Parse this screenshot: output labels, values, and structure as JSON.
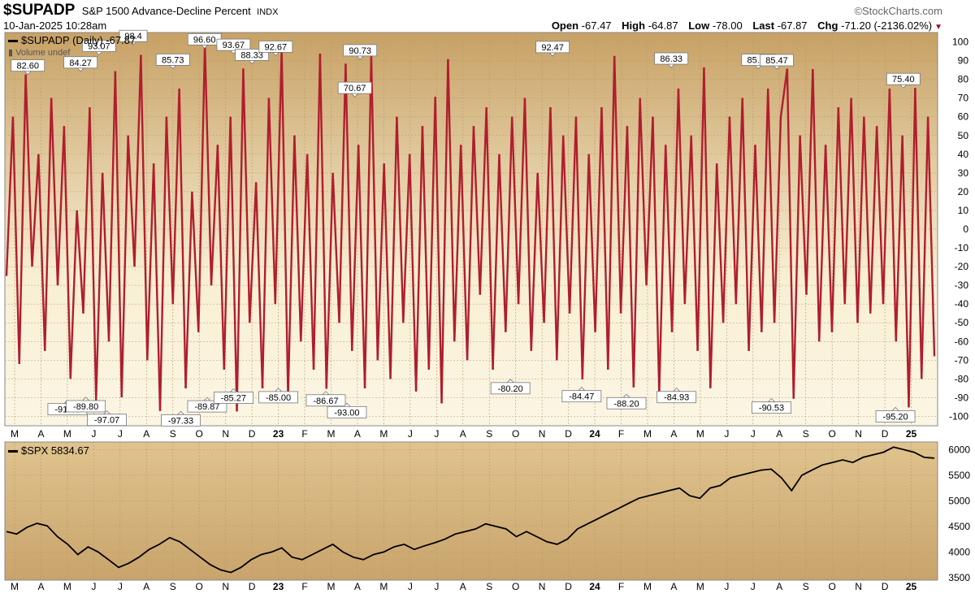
{
  "header": {
    "symbol": "$SUPADP",
    "description": "S&P 1500 Advance-Decline Percent",
    "exchange": "INDX",
    "brand": "©StockCharts.com",
    "datetime": "10-Jan-2025 10:28am",
    "open_label": "Open",
    "open": "-67.47",
    "high_label": "High",
    "high": "-64.87",
    "low_label": "Low",
    "low": "-78.00",
    "last_label": "Last",
    "last": "-67.87",
    "chg_label": "Chg",
    "chg": "-71.20 (-2136.02%)"
  },
  "colors": {
    "line": "#b01e2e",
    "bg_top": "#c8a46a",
    "bg_mid": "#f7edcf",
    "price": "#000000"
  },
  "chart_data": [
    {
      "type": "line",
      "name": "upper",
      "legend": "$SUPADP (Daily) -67.87",
      "sublegend": "Volume undef",
      "ylim": [
        -105,
        105
      ],
      "yticks": [
        100,
        90,
        80,
        70,
        60,
        50,
        40,
        30,
        20,
        10,
        0,
        -10,
        -20,
        -30,
        -40,
        -50,
        -60,
        -70,
        -80,
        -90,
        -100
      ],
      "months": [
        "M",
        "A",
        "M",
        "J",
        "J",
        "A",
        "S",
        "O",
        "N",
        "D",
        "23",
        "F",
        "M",
        "A",
        "M",
        "J",
        "J",
        "A",
        "S",
        "O",
        "N",
        "D",
        "24",
        "F",
        "M",
        "A",
        "M",
        "J",
        "J",
        "A",
        "S",
        "O",
        "N",
        "D",
        "25"
      ],
      "annotations": [
        {
          "x": 0.5,
          "y": 82.6,
          "label": "82.60"
        },
        {
          "x": 2.5,
          "y": 84.27,
          "label": "84.27"
        },
        {
          "x": 3.2,
          "y": 93.07,
          "label": "93.07"
        },
        {
          "x": 4.5,
          "y": 98.4,
          "label": "98.4"
        },
        {
          "x": 6.0,
          "y": 85.73,
          "label": "85.73"
        },
        {
          "x": 7.2,
          "y": 96.6,
          "label": "96.60"
        },
        {
          "x": 8.3,
          "y": 93.67,
          "label": "93.67"
        },
        {
          "x": 9.0,
          "y": 88.33,
          "label": "88.33"
        },
        {
          "x": 9.9,
          "y": 92.67,
          "label": "92.67"
        },
        {
          "x": 12.9,
          "y": 70.67,
          "label": "70.67"
        },
        {
          "x": 13.1,
          "y": 90.73,
          "label": "90.73"
        },
        {
          "x": 20.4,
          "y": 92.47,
          "label": "92.47"
        },
        {
          "x": 24.9,
          "y": 86.33,
          "label": "86.33"
        },
        {
          "x": 28.2,
          "y": 85.67,
          "label": "85.67"
        },
        {
          "x": 28.9,
          "y": 85.47,
          "label": "85.47"
        },
        {
          "x": 33.7,
          "y": 75.4,
          "label": "75.40"
        },
        {
          "x": 2.0,
          "y": -91.4,
          "label": "-91.40"
        },
        {
          "x": 2.7,
          "y": -89.8,
          "label": "-89.80"
        },
        {
          "x": 3.5,
          "y": -97.07,
          "label": "-97.07"
        },
        {
          "x": 6.3,
          "y": -97.33,
          "label": "-97.33"
        },
        {
          "x": 7.3,
          "y": -89.87,
          "label": "-89.87"
        },
        {
          "x": 8.3,
          "y": -85.27,
          "label": "-85.27"
        },
        {
          "x": 10.0,
          "y": -85.0,
          "label": "-85.00"
        },
        {
          "x": 11.8,
          "y": -86.67,
          "label": "-86.67"
        },
        {
          "x": 12.6,
          "y": -93.0,
          "label": "-93.00"
        },
        {
          "x": 18.8,
          "y": -80.2,
          "label": "-80.20"
        },
        {
          "x": 21.5,
          "y": -84.47,
          "label": "-84.47"
        },
        {
          "x": 23.2,
          "y": -88.2,
          "label": "-88.20"
        },
        {
          "x": 25.1,
          "y": -84.93,
          "label": "-84.93"
        },
        {
          "x": 28.7,
          "y": -90.53,
          "label": "-90.53"
        },
        {
          "x": 33.4,
          "y": -95.2,
          "label": "-95.20"
        }
      ],
      "series": [
        {
          "values": [
            -25,
            60,
            -72,
            82.6,
            -20,
            40,
            -65,
            70,
            -30,
            55,
            -80,
            10,
            -45,
            65,
            -91.4,
            30,
            -60,
            84.27,
            -89.8,
            50,
            -20,
            93.07,
            -70,
            35,
            -97.07,
            60,
            -40,
            75,
            -85,
            20,
            -55,
            98.4,
            -30,
            45,
            -75,
            60,
            -97.33,
            85.73,
            -50,
            25,
            -85,
            70,
            -40,
            96.6,
            -89.87,
            50,
            -60,
            40,
            -75,
            93.67,
            -85.27,
            30,
            -50,
            88.33,
            -65,
            45,
            -85,
            92.67,
            -70,
            35,
            -80,
            60,
            -50,
            40,
            -86.67,
            55,
            -75,
            70.67,
            -93,
            90.73,
            -60,
            45,
            -70,
            55,
            -35,
            65,
            -75,
            40,
            -55,
            60,
            -40,
            70,
            -65,
            30,
            -50,
            65,
            -70,
            50,
            -45,
            60,
            -80.2,
            40,
            -55,
            65,
            -75,
            92.47,
            -45,
            55,
            -84.47,
            70,
            -30,
            60,
            -88.2,
            45,
            -55,
            75,
            -40,
            50,
            -65,
            86.33,
            -84.93,
            35,
            -50,
            60,
            -40,
            70,
            -65,
            45,
            -55,
            75,
            -50,
            60,
            85.67,
            -90.53,
            50,
            -35,
            85.47,
            -60,
            45,
            -55,
            65,
            -40,
            70,
            -50,
            60,
            -45,
            55,
            -40,
            75,
            -60,
            50,
            -95.2,
            75.4,
            -80,
            60,
            -67.87
          ]
        }
      ]
    },
    {
      "type": "line",
      "name": "lower",
      "legend": "$SPX 5834.67",
      "ylim": [
        3450,
        6150
      ],
      "yticks": [
        6000,
        5500,
        5000,
        4500,
        4000,
        3500
      ],
      "months": [
        "M",
        "A",
        "M",
        "J",
        "J",
        "A",
        "S",
        "O",
        "N",
        "D",
        "23",
        "F",
        "M",
        "A",
        "M",
        "J",
        "J",
        "A",
        "S",
        "O",
        "N",
        "D",
        "24",
        "F",
        "M",
        "A",
        "M",
        "J",
        "J",
        "A",
        "S",
        "O",
        "N",
        "D",
        "25"
      ],
      "series": [
        {
          "values": [
            4400,
            4350,
            4480,
            4560,
            4510,
            4300,
            4150,
            3950,
            4100,
            4000,
            3850,
            3700,
            3780,
            3900,
            4050,
            4150,
            4280,
            4200,
            4050,
            3900,
            3750,
            3650,
            3600,
            3700,
            3850,
            3950,
            4000,
            4080,
            3900,
            3850,
            3950,
            4050,
            4150,
            4000,
            3900,
            3850,
            3950,
            4000,
            4100,
            4150,
            4050,
            4120,
            4180,
            4250,
            4350,
            4400,
            4450,
            4550,
            4500,
            4450,
            4300,
            4400,
            4300,
            4200,
            4150,
            4250,
            4450,
            4550,
            4650,
            4750,
            4850,
            4950,
            5050,
            5100,
            5150,
            5200,
            5250,
            5100,
            5050,
            5250,
            5300,
            5450,
            5500,
            5550,
            5600,
            5620,
            5450,
            5200,
            5500,
            5600,
            5700,
            5750,
            5800,
            5750,
            5850,
            5900,
            5950,
            6050,
            6000,
            5950,
            5850,
            5834.67
          ]
        }
      ]
    }
  ]
}
